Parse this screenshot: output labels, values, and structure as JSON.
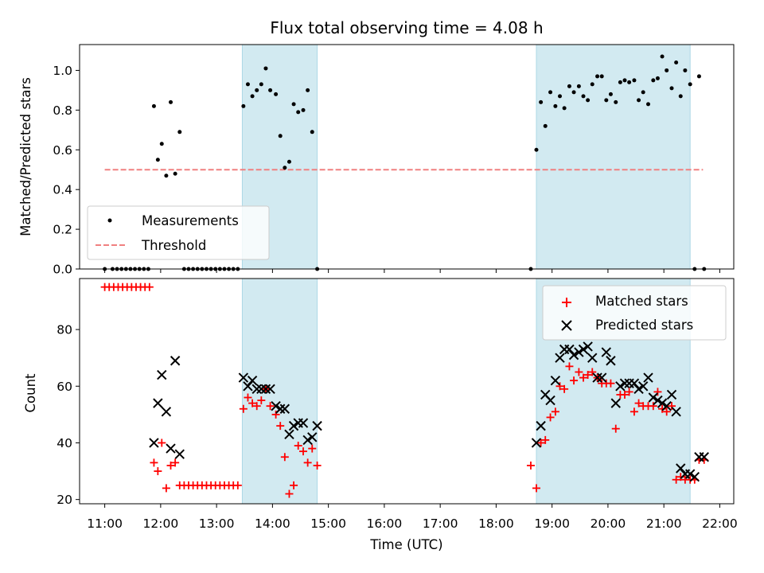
{
  "chart_data": [
    {
      "type": "scatter",
      "title": "Flux total observing time = 4.08 h",
      "xlabel": "",
      "ylabel": "Matched/Predicted stars",
      "xlim": [
        10.55,
        22.25
      ],
      "ylim": [
        0,
        1.13
      ],
      "yticks": [
        0.0,
        0.2,
        0.4,
        0.6,
        0.8,
        1.0
      ],
      "ytick_labels": [
        "0.0",
        "0.2",
        "0.4",
        "0.6",
        "0.8",
        "1.0"
      ],
      "shaded_regions": [
        [
          13.46,
          14.8
        ],
        [
          18.72,
          21.47
        ]
      ],
      "shade_color": "#add8e6",
      "grid": false,
      "legend": {
        "position": "lower-left",
        "entries": [
          "Measurements",
          "Threshold"
        ]
      },
      "threshold": {
        "name": "Threshold",
        "x": [
          11.0,
          21.7
        ],
        "y": 0.5,
        "color": "#f08080",
        "style": "dashed"
      },
      "series": [
        {
          "name": "Measurements",
          "color": "#000000",
          "marker": "dot",
          "x": [
            11.0,
            11.14,
            11.22,
            11.3,
            11.38,
            11.46,
            11.54,
            11.62,
            11.7,
            11.78,
            11.88,
            11.95,
            12.02,
            12.1,
            12.18,
            12.26,
            12.34,
            12.42,
            12.5,
            12.58,
            12.66,
            12.74,
            12.82,
            12.9,
            12.98,
            13.06,
            13.14,
            13.22,
            13.3,
            13.38,
            13.48,
            13.56,
            13.64,
            13.72,
            13.8,
            13.88,
            13.96,
            14.06,
            14.14,
            14.22,
            14.3,
            14.38,
            14.46,
            14.55,
            14.63,
            14.71,
            14.8,
            18.62,
            18.72,
            18.8,
            18.88,
            18.97,
            19.06,
            19.14,
            19.22,
            19.31,
            19.39,
            19.48,
            19.56,
            19.64,
            19.72,
            19.81,
            19.89,
            19.97,
            20.05,
            20.14,
            20.22,
            20.3,
            20.38,
            20.47,
            20.55,
            20.63,
            20.72,
            20.81,
            20.89,
            20.97,
            21.05,
            21.14,
            21.22,
            21.3,
            21.38,
            21.47,
            21.55,
            21.63,
            21.72
          ],
          "y": [
            0,
            0,
            0,
            0,
            0,
            0,
            0,
            0,
            0,
            0,
            0.82,
            0.55,
            0.63,
            0.47,
            0.84,
            0.48,
            0.69,
            0,
            0,
            0,
            0,
            0,
            0,
            0,
            0,
            0,
            0,
            0,
            0,
            0,
            0.82,
            0.93,
            0.87,
            0.9,
            0.93,
            1.01,
            0.9,
            0.88,
            0.67,
            0.51,
            0.54,
            0.83,
            0.79,
            0.8,
            0.9,
            0.69,
            0,
            0,
            0.6,
            0.84,
            0.72,
            0.89,
            0.82,
            0.87,
            0.81,
            0.92,
            0.89,
            0.92,
            0.87,
            0.85,
            0.93,
            0.97,
            0.97,
            0.85,
            0.88,
            0.84,
            0.94,
            0.95,
            0.94,
            0.95,
            0.85,
            0.89,
            0.83,
            0.95,
            0.96,
            1.07,
            1.0,
            0.91,
            1.04,
            0.87,
            1.0,
            0.93,
            0,
            0.97,
            0
          ]
        }
      ]
    },
    {
      "type": "scatter",
      "title": "",
      "xlabel": "Time (UTC)",
      "ylabel": "Count",
      "xlim": [
        10.55,
        22.25
      ],
      "ylim": [
        18.5,
        98
      ],
      "yticks": [
        20,
        40,
        60,
        80
      ],
      "ytick_labels": [
        "20",
        "40",
        "60",
        "80"
      ],
      "xticks": [
        11,
        12,
        13,
        14,
        15,
        16,
        17,
        18,
        19,
        20,
        21,
        22
      ],
      "xtick_labels": [
        "11:00",
        "12:00",
        "13:00",
        "14:00",
        "15:00",
        "16:00",
        "17:00",
        "18:00",
        "19:00",
        "20:00",
        "21:00",
        "22:00"
      ],
      "shaded_regions": [
        [
          13.46,
          14.8
        ],
        [
          18.72,
          21.47
        ]
      ],
      "shade_color": "#add8e6",
      "grid": false,
      "legend": {
        "position": "top-right",
        "entries": [
          "Matched stars",
          "Predicted stars"
        ]
      },
      "series": [
        {
          "name": "Matched stars",
          "color": "#ff0000",
          "marker": "plus",
          "x": [
            11.0,
            11.08,
            11.16,
            11.24,
            11.32,
            11.4,
            11.48,
            11.56,
            11.64,
            11.72,
            11.8,
            11.88,
            11.95,
            12.02,
            12.1,
            12.18,
            12.26,
            12.34,
            12.42,
            12.5,
            12.58,
            12.66,
            12.74,
            12.82,
            12.9,
            12.98,
            13.06,
            13.14,
            13.22,
            13.3,
            13.38,
            13.48,
            13.56,
            13.64,
            13.72,
            13.8,
            13.88,
            13.96,
            14.06,
            14.14,
            14.22,
            14.3,
            14.38,
            14.46,
            14.55,
            14.63,
            14.71,
            14.8,
            18.62,
            18.72,
            18.8,
            18.88,
            18.97,
            19.06,
            19.14,
            19.22,
            19.31,
            19.39,
            19.48,
            19.56,
            19.64,
            19.72,
            19.81,
            19.89,
            19.97,
            20.05,
            20.14,
            20.22,
            20.3,
            20.38,
            20.47,
            20.55,
            20.63,
            20.72,
            20.81,
            20.89,
            20.97,
            21.05,
            21.14,
            21.22,
            21.3,
            21.38,
            21.47,
            21.55,
            21.63,
            21.72
          ],
          "y": [
            95,
            95,
            95,
            95,
            95,
            95,
            95,
            95,
            95,
            95,
            95,
            33,
            30,
            40,
            24,
            32,
            33,
            25,
            25,
            25,
            25,
            25,
            25,
            25,
            25,
            25,
            25,
            25,
            25,
            25,
            25,
            52,
            56,
            54,
            53,
            55,
            59,
            53,
            50,
            46,
            35,
            22,
            25,
            39,
            37,
            33,
            38,
            32,
            32,
            24,
            40,
            41,
            49,
            51,
            60,
            59,
            67,
            62,
            65,
            63,
            64,
            65,
            63,
            61,
            61,
            61,
            45,
            57,
            57,
            58,
            51,
            54,
            53,
            53,
            53,
            58,
            52,
            51,
            53,
            27,
            28,
            27,
            27,
            27,
            34,
            34
          ],
          "x_note": "",
          "y_note": ""
        },
        {
          "name": "Predicted stars",
          "color": "#000000",
          "marker": "x",
          "x": [
            11.88,
            11.95,
            12.02,
            12.1,
            12.18,
            12.26,
            12.34,
            13.48,
            13.56,
            13.64,
            13.72,
            13.8,
            13.88,
            13.96,
            14.06,
            14.14,
            14.22,
            14.3,
            14.38,
            14.46,
            14.55,
            14.63,
            14.71,
            14.8,
            18.72,
            18.8,
            18.88,
            18.97,
            19.06,
            19.14,
            19.22,
            19.31,
            19.39,
            19.48,
            19.56,
            19.64,
            19.72,
            19.81,
            19.89,
            19.97,
            20.05,
            20.14,
            20.22,
            20.3,
            20.38,
            20.47,
            20.55,
            20.63,
            20.72,
            20.81,
            20.89,
            20.97,
            21.05,
            21.14,
            21.22,
            21.3,
            21.38,
            21.47,
            21.55,
            21.63,
            21.72
          ],
          "y": [
            40,
            54,
            64,
            51,
            38,
            69,
            36,
            63,
            60,
            62,
            59,
            59,
            59,
            59,
            53,
            52,
            52,
            43,
            46,
            47,
            47,
            41,
            42,
            46,
            40,
            46,
            57,
            55,
            62,
            70,
            73,
            73,
            71,
            72,
            73,
            74,
            70,
            63,
            63,
            72,
            69,
            54,
            60,
            61,
            61,
            61,
            59,
            60,
            63,
            56,
            55,
            54,
            53,
            57,
            51,
            31,
            29,
            29,
            28,
            35,
            35
          ]
        }
      ]
    }
  ]
}
